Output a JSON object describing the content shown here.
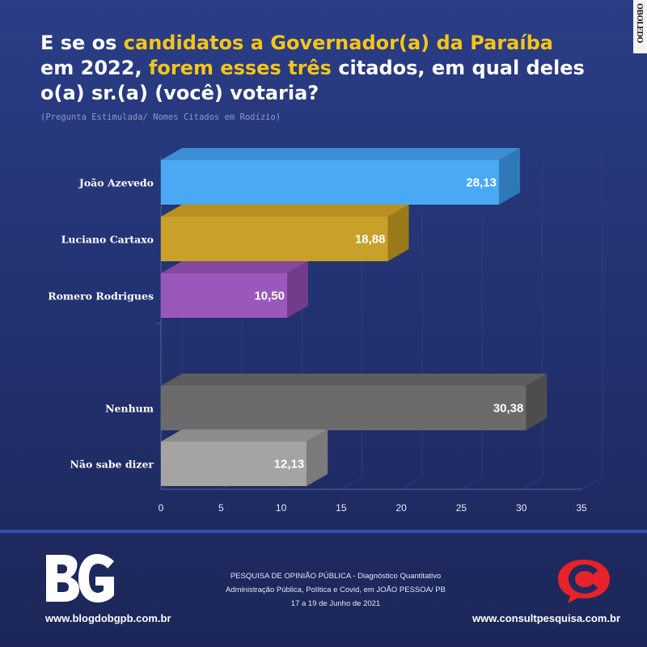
{
  "title": {
    "line1_a": "E se os ",
    "line1_b": "candidatos a Governador(a) da Paraíba",
    "line2_a": "em 2022, ",
    "line2_b": "forem esses três",
    "line2_c": " citados, em qual deles",
    "line3": "o(a) sr.(a) (você) votaria?"
  },
  "subtitle": "(Pregunta Estimulada/ Nomes Citados em Rodízio)",
  "chart_data": {
    "type": "bar",
    "orientation": "horizontal",
    "style": "3d",
    "categories": [
      "João Azevedo",
      "Luciano Cartaxo",
      "Romero Rodrigues",
      "Nenhum",
      "Não sabe dizer"
    ],
    "values": [
      28.13,
      18.88,
      10.5,
      30.38,
      12.13
    ],
    "value_labels": [
      "28,13",
      "18,88",
      "10,50",
      "30,38",
      "12,13"
    ],
    "colors": [
      "#4aa9f5",
      "#c9a12a",
      "#9a58bd",
      "#6b6b6b",
      "#a4a4a4"
    ],
    "top_colors": [
      "#3c8fd4",
      "#b8901f",
      "#85489f",
      "#5d5d5d",
      "#8c8c8c"
    ],
    "side_colors": [
      "#2f79b8",
      "#9a7a1a",
      "#733c8a",
      "#4d4d4d",
      "#7a7a7a"
    ],
    "xlim": [
      0,
      35
    ],
    "xticks": [
      0,
      5,
      10,
      15,
      20,
      25,
      30,
      35
    ],
    "grid": true,
    "xlabel": "",
    "ylabel": ""
  },
  "footer": {
    "left_logo": "BG",
    "left_url": "www.blogdobgpb.com.br",
    "center_line1": "PESQUISA DE OPINIÃO PÚBLICA - Diagnóstico Quantitativo",
    "center_line2": "Administração Pública, Política e Covid, em JOÃO PESSOA/ PB",
    "center_line3": "17 a 19 de Junho de 2021",
    "right_url": "www.consultpesquisa.com.br"
  },
  "corner_logo": "OBOLEDO",
  "icons": {
    "left_logo": "bg-logo",
    "right_logo": "consult-speech-bubble-logo"
  }
}
